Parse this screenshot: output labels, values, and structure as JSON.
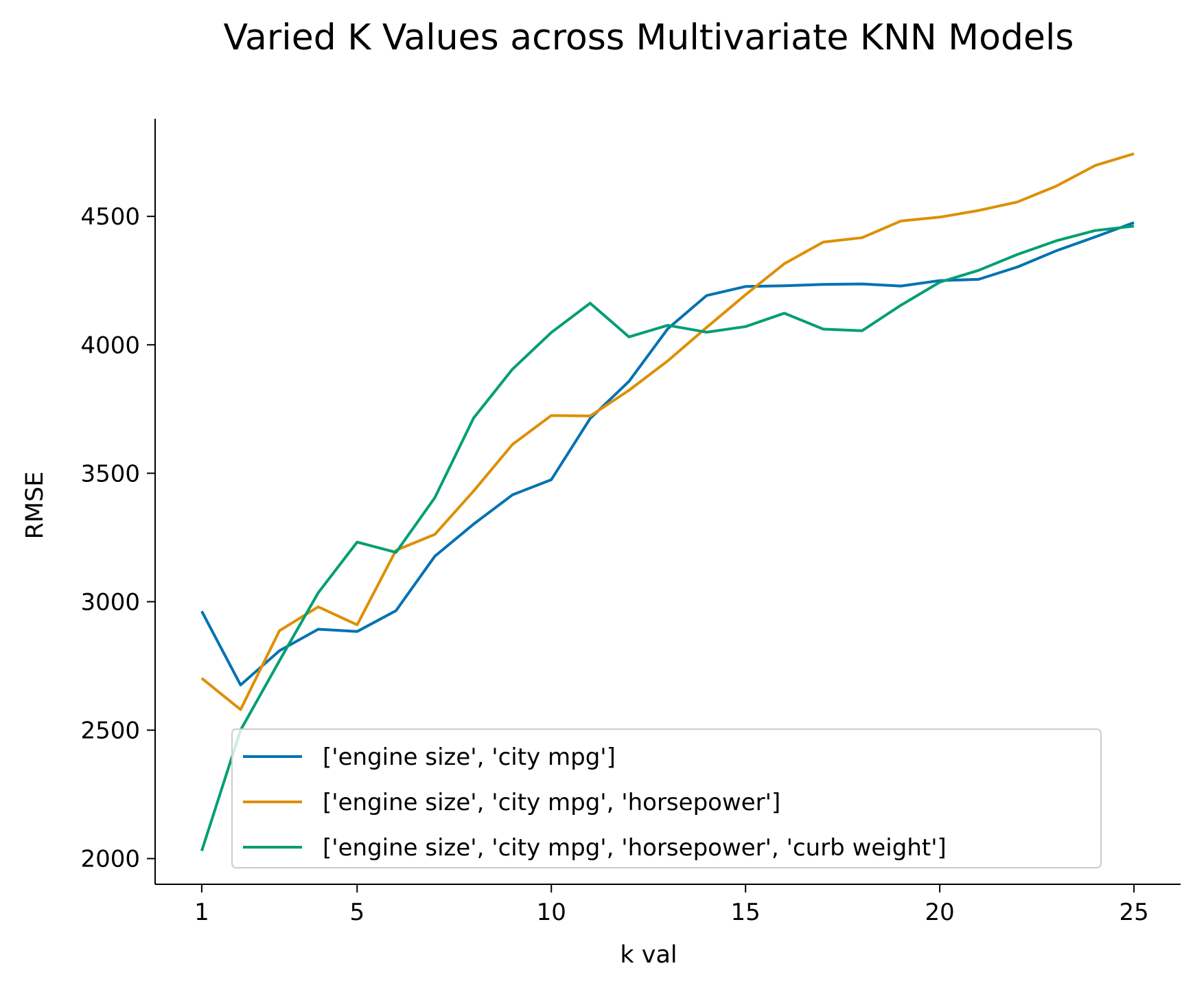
{
  "chart_data": {
    "type": "line",
    "title": "Varied K Values across Multivariate KNN Models",
    "xlabel": "k val",
    "ylabel": "RMSE",
    "x": [
      1,
      2,
      3,
      4,
      5,
      6,
      7,
      8,
      9,
      10,
      11,
      12,
      13,
      14,
      15,
      16,
      17,
      18,
      19,
      20,
      21,
      22,
      23,
      24,
      25
    ],
    "xticks": [
      1,
      5,
      10,
      15,
      20,
      25
    ],
    "yticks": [
      2000,
      2500,
      3000,
      3500,
      4000,
      4500
    ],
    "xlim": [
      -0.2,
      26.2
    ],
    "ylim": [
      1900,
      4880
    ],
    "grid": false,
    "legend_position": "lower-right",
    "series": [
      {
        "name": "['engine size', 'city mpg']",
        "color": "#0072b2",
        "values": [
          2963,
          2676,
          2809,
          2893,
          2884,
          2965,
          3177,
          3302,
          3416,
          3475,
          3713,
          3858,
          4063,
          4192,
          4227,
          4230,
          4235,
          4237,
          4229,
          4250,
          4255,
          4303,
          4366,
          4420,
          4476
        ]
      },
      {
        "name": "['engine size', 'city mpg', 'horsepower']",
        "color": "#de8f05",
        "values": [
          2702,
          2580,
          2887,
          2980,
          2910,
          3200,
          3262,
          3431,
          3612,
          3725,
          3723,
          3823,
          3938,
          4068,
          4195,
          4316,
          4400,
          4417,
          4482,
          4497,
          4523,
          4556,
          4618,
          4698,
          4744
        ]
      },
      {
        "name": "['engine size', 'city mpg', 'horsepower', 'curb weight']",
        "color": "#029e73",
        "values": [
          2030,
          2500,
          2770,
          3035,
          3232,
          3192,
          3405,
          3715,
          3905,
          4048,
          4162,
          4031,
          4076,
          4049,
          4071,
          4123,
          4061,
          4055,
          4154,
          4244,
          4290,
          4352,
          4405,
          4445,
          4462
        ]
      }
    ]
  }
}
